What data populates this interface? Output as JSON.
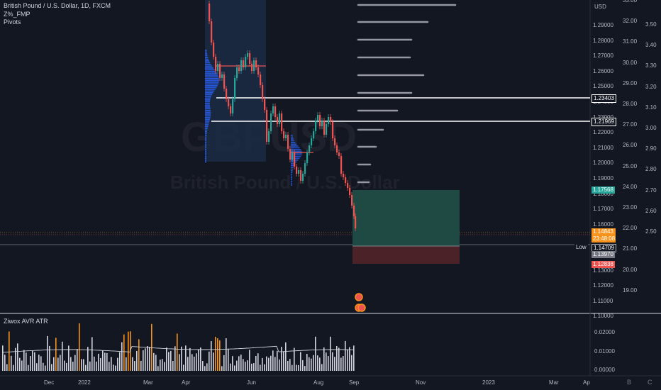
{
  "legend": {
    "symbol_line": "British Pound / U.S. Dollar, 1D, FXCM",
    "indicator1": "Z%_FMP",
    "indicator2": "Pivots"
  },
  "watermark": {
    "symbol": "GBPUSD",
    "name": "British Pound / U.S. Dollar"
  },
  "currency": "USD",
  "price_axis": [
    "1.29000",
    "1.28000",
    "1.27000",
    "1.26000",
    "1.25000",
    "1.24000",
    "1.23000",
    "1.22000",
    "1.21000",
    "1.20000",
    "1.19000",
    "1.18000",
    "1.17000",
    "1.16000",
    "1.15000",
    "1.14000",
    "1.13000",
    "1.12000",
    "1.11000",
    "1.10000"
  ],
  "zscore_axis": [
    "33.00",
    "32.00",
    "31.00",
    "30.00",
    "29.00",
    "28.00",
    "27.00",
    "26.00",
    "25.00",
    "24.00",
    "23.00",
    "22.00",
    "21.00",
    "20.00",
    "19.00"
  ],
  "right_axis": [
    "3.50",
    "3.40",
    "3.30",
    "3.20",
    "3.10",
    "3.00",
    "2.90",
    "2.80",
    "2.70",
    "2.60",
    "2.50"
  ],
  "price_tags": {
    "level1": "1.23403",
    "level2": "1.21969",
    "target": "1.17568",
    "current": "1.14843",
    "countdown": "23:48:08",
    "low_label": "Low",
    "low": "1.14709",
    "entry": "1.13970",
    "stop": "1.12838"
  },
  "atr": {
    "title": "Ziwox AVR ATR",
    "axis": [
      "0.02000",
      "0.01000",
      "0.00000"
    ]
  },
  "time_axis": [
    "Dec",
    "2022",
    "Mar",
    "Apr",
    "Jun",
    "Aug",
    "Sep",
    "Nov",
    "2023",
    "Mar",
    "Ap"
  ],
  "bottom_icons": [
    "B",
    "C"
  ],
  "colors": {
    "bg": "#131722",
    "up": "#26a69a",
    "down": "#ef5350",
    "profit_zone": "#1e4a43",
    "loss_zone": "#4a2228",
    "current": "#f7931a"
  }
}
